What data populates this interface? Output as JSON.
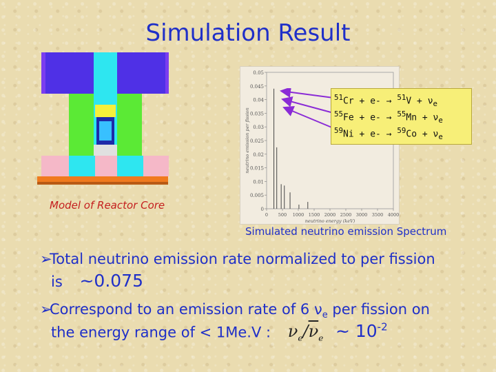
{
  "slide": {
    "title": "Simulation Result",
    "core_caption": "Model of Reactor Core",
    "spectrum_caption": "Simulated neutrino emission Spectrum"
  },
  "reactions": [
    {
      "parent_mass": "51",
      "parent": "Cr",
      "product_mass": "51",
      "product": "V"
    },
    {
      "parent_mass": "55",
      "parent": "Fe",
      "product_mass": "55",
      "product": "Mn"
    },
    {
      "parent_mass": "59",
      "parent": "Ni",
      "product_mass": "59",
      "product": "Co"
    }
  ],
  "reaction_text": {
    "plus": "+",
    "electron": "e-",
    "arrow": "→",
    "neutrino": "ν",
    "sub_e": "e"
  },
  "bullets": {
    "b1_line1": "Total neutrino emission rate normalized to per fission",
    "b1_line2": "is",
    "b1_value": "~0.075",
    "b2_line1_pre": "Correspond to an emission rate of 6 ν",
    "b2_line1_sub": "e",
    "b2_line1_post": " per fission on",
    "b2_line2": "the energy range of < 1Me.V :",
    "b2_value_base": "~ 10",
    "b2_value_exp": "-2"
  },
  "chart_data": {
    "type": "bar",
    "xlabel": "neutrino energy (keV)",
    "ylabel": "neutrino emission per fission",
    "xticks": [
      "0",
      "500",
      "1000",
      "1500",
      "2000",
      "2500",
      "3000",
      "3500",
      "4000"
    ],
    "yticks": [
      "0",
      "0.005",
      "0.01",
      "0.015",
      "0.02",
      "0.025",
      "0.03",
      "0.035",
      "0.04",
      "0.045",
      "0.05"
    ],
    "xlim": [
      0,
      4000
    ],
    "ylim": [
      0,
      0.05
    ],
    "lines": [
      {
        "x": 230,
        "y": 0.044
      },
      {
        "x": 320,
        "y": 0.0225
      },
      {
        "x": 460,
        "y": 0.009
      },
      {
        "x": 560,
        "y": 0.0085
      },
      {
        "x": 740,
        "y": 0.006
      },
      {
        "x": 1020,
        "y": 0.0015
      },
      {
        "x": 1300,
        "y": 0.0025
      }
    ]
  }
}
